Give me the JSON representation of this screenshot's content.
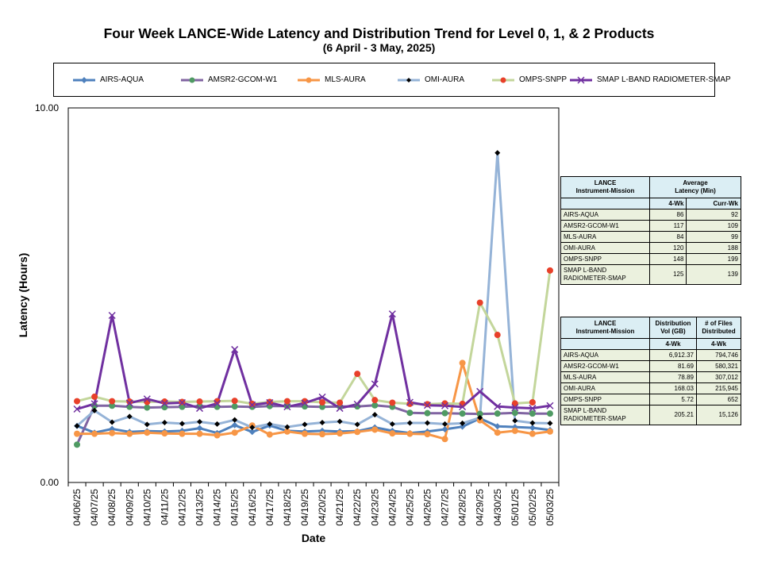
{
  "chart_data": {
    "type": "line",
    "title": "Four Week LANCE-Wide Latency and Distribution Trend for Level 0, 1, & 2 Products",
    "subtitle": "(6  April    -  3  May,  2025)",
    "xlabel": "Date",
    "ylabel": "Latency (Hours)",
    "ylim": [
      0,
      10
    ],
    "ytick_labels": [
      "0.00",
      "10.00"
    ],
    "categories": [
      "04/06/25",
      "04/07/25",
      "04/08/25",
      "04/09/25",
      "04/10/25",
      "04/11/25",
      "04/12/25",
      "04/13/25",
      "04/14/25",
      "04/15/25",
      "04/16/25",
      "04/17/25",
      "04/18/25",
      "04/19/25",
      "04/20/25",
      "04/21/25",
      "04/22/25",
      "04/23/25",
      "04/24/25",
      "04/25/25",
      "04/26/25",
      "04/27/25",
      "04/28/25",
      "04/29/25",
      "04/30/25",
      "05/01/25",
      "05/02/25",
      "05/03/25"
    ],
    "series": [
      {
        "name": "AIRS-AQUA",
        "color": "#4f81bd",
        "marker": "diamond",
        "values": [
          1.51,
          1.33,
          1.43,
          1.35,
          1.37,
          1.36,
          1.38,
          1.45,
          1.32,
          1.53,
          1.35,
          1.52,
          1.38,
          1.36,
          1.38,
          1.36,
          1.37,
          1.47,
          1.38,
          1.32,
          1.36,
          1.42,
          1.49,
          1.71,
          1.5,
          1.48,
          1.46,
          1.4
        ]
      },
      {
        "name": "AMSR2-GCOM-W1",
        "color": "#8064a2",
        "marker": "circle-green",
        "values": [
          1.01,
          2.05,
          2.05,
          2.02,
          2.0,
          2.01,
          2.02,
          2.04,
          2.02,
          2.03,
          2.02,
          2.04,
          2.04,
          2.03,
          2.02,
          2.03,
          2.03,
          2.06,
          2.02,
          1.86,
          1.85,
          1.85,
          1.84,
          1.83,
          1.84,
          1.86,
          1.84,
          1.84
        ]
      },
      {
        "name": "MLS-AURA",
        "color": "#f79646",
        "marker": "circle-orange",
        "values": [
          1.3,
          1.3,
          1.32,
          1.3,
          1.33,
          1.31,
          1.3,
          1.3,
          1.26,
          1.33,
          1.52,
          1.28,
          1.36,
          1.3,
          1.29,
          1.31,
          1.35,
          1.41,
          1.31,
          1.3,
          1.29,
          1.16,
          3.19,
          1.66,
          1.33,
          1.38,
          1.3,
          1.36
        ]
      },
      {
        "name": "OMI-AURA",
        "color": "#95b3d7",
        "marker": "diamond-black",
        "values": [
          1.51,
          1.92,
          1.61,
          1.76,
          1.55,
          1.6,
          1.57,
          1.62,
          1.56,
          1.67,
          1.47,
          1.56,
          1.48,
          1.55,
          1.6,
          1.63,
          1.55,
          1.81,
          1.56,
          1.59,
          1.59,
          1.56,
          1.58,
          1.73,
          8.8,
          1.65,
          1.59,
          1.58
        ]
      },
      {
        "name": "OMPS-SNPP",
        "color": "#c3d69b",
        "marker": "circle-red",
        "values": [
          2.17,
          2.29,
          2.17,
          2.16,
          2.15,
          2.16,
          2.15,
          2.16,
          2.17,
          2.18,
          2.1,
          2.15,
          2.17,
          2.17,
          2.14,
          2.13,
          2.9,
          2.2,
          2.13,
          2.1,
          2.09,
          2.11,
          2.1,
          4.8,
          3.94,
          2.11,
          2.14,
          5.66
        ]
      },
      {
        "name": "SMAP L-BAND RADIOMETER-SMAP",
        "color": "#7030a0",
        "marker": "x",
        "values": [
          1.96,
          2.1,
          4.46,
          2.12,
          2.23,
          2.11,
          2.13,
          1.98,
          2.11,
          3.55,
          2.07,
          2.13,
          2.02,
          2.12,
          2.28,
          1.98,
          2.09,
          2.63,
          4.5,
          2.14,
          2.06,
          2.05,
          2.02,
          2.43,
          2.03,
          2.0,
          1.98,
          2.05
        ]
      }
    ]
  },
  "latency_table": {
    "header1": "LANCE",
    "header2": "Instrument-Mission",
    "avg_header1": "Average",
    "avg_header2": "Latency (Min)",
    "col1": "4-Wk",
    "col2": "Curr-Wk",
    "rows": [
      {
        "name": "AIRS-AQUA",
        "a": "86",
        "b": "92"
      },
      {
        "name": "AMSR2-GCOM-W1",
        "a": "117",
        "b": "109"
      },
      {
        "name": "MLS-AURA",
        "a": "84",
        "b": "99"
      },
      {
        "name": "OMI-AURA",
        "a": "120",
        "b": "188"
      },
      {
        "name": "OMPS-SNPP",
        "a": "148",
        "b": "199"
      },
      {
        "name": "SMAP L-BAND RADIOMETER-SMAP",
        "a": "125",
        "b": "139"
      }
    ]
  },
  "distribution_table": {
    "header1": "LANCE",
    "header2": "Instrument-Mission",
    "vol_header1": "Distribution",
    "vol_header2": "Vol (GB)",
    "files_header1": "# of Files",
    "files_header2": "Distributed",
    "col1": "4-Wk",
    "col2": "4-Wk",
    "rows": [
      {
        "name": "AIRS-AQUA",
        "a": "6,912.37",
        "b": "794,746"
      },
      {
        "name": "AMSR2-GCOM-W1",
        "a": "81.69",
        "b": "580,321"
      },
      {
        "name": "MLS-AURA",
        "a": "78.89",
        "b": "307,012"
      },
      {
        "name": "OMI-AURA",
        "a": "168.03",
        "b": "215,945"
      },
      {
        "name": "OMPS-SNPP",
        "a": "5.72",
        "b": "652"
      },
      {
        "name": "SMAP L-BAND RADIOMETER-SMAP",
        "a": "205.21",
        "b": "15,126"
      }
    ]
  }
}
